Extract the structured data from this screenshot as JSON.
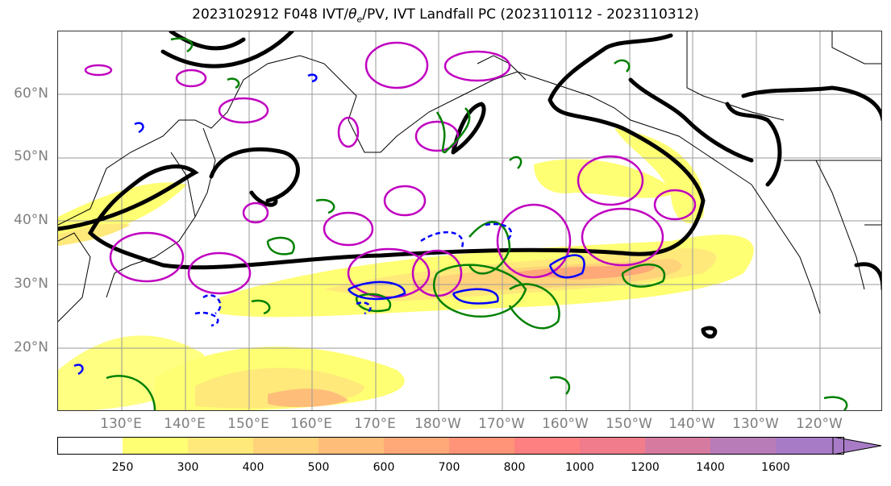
{
  "title_prefix": "2023102912 F048 IVT/",
  "title_theta": "θ",
  "title_theta_sub": "e",
  "title_suffix": "/PV, IVT Landfall PC (2023110112 - 2023110312)",
  "lat_labels": [
    "60°N",
    "50°N",
    "40°N",
    "30°N",
    "20°N"
  ],
  "lon_labels": [
    "130°E",
    "140°E",
    "150°E",
    "160°E",
    "170°E",
    "180°W",
    "170°W",
    "160°W",
    "150°W",
    "140°W",
    "130°W",
    "120°W"
  ],
  "colorbar": {
    "levels": [
      "250",
      "300",
      "400",
      "500",
      "600",
      "700",
      "800",
      "1000",
      "1200",
      "1400",
      "1600"
    ],
    "colors": [
      "#ffffff",
      "#ffff73",
      "#ffe97a",
      "#ffd37a",
      "#ffbd7a",
      "#ffa878",
      "#ff9478",
      "#ff8080",
      "#f07c8c",
      "#d77aa0",
      "#b87cb8",
      "#a87bc6"
    ]
  },
  "map": {
    "lat_range": [
      10,
      70
    ],
    "lon_range": [
      120,
      250
    ],
    "contour_colors": {
      "theta_e": "#000000",
      "pv_positive": "#008000",
      "pv_negative": "#0000ff",
      "landfall_pc": "#c000c0"
    }
  }
}
